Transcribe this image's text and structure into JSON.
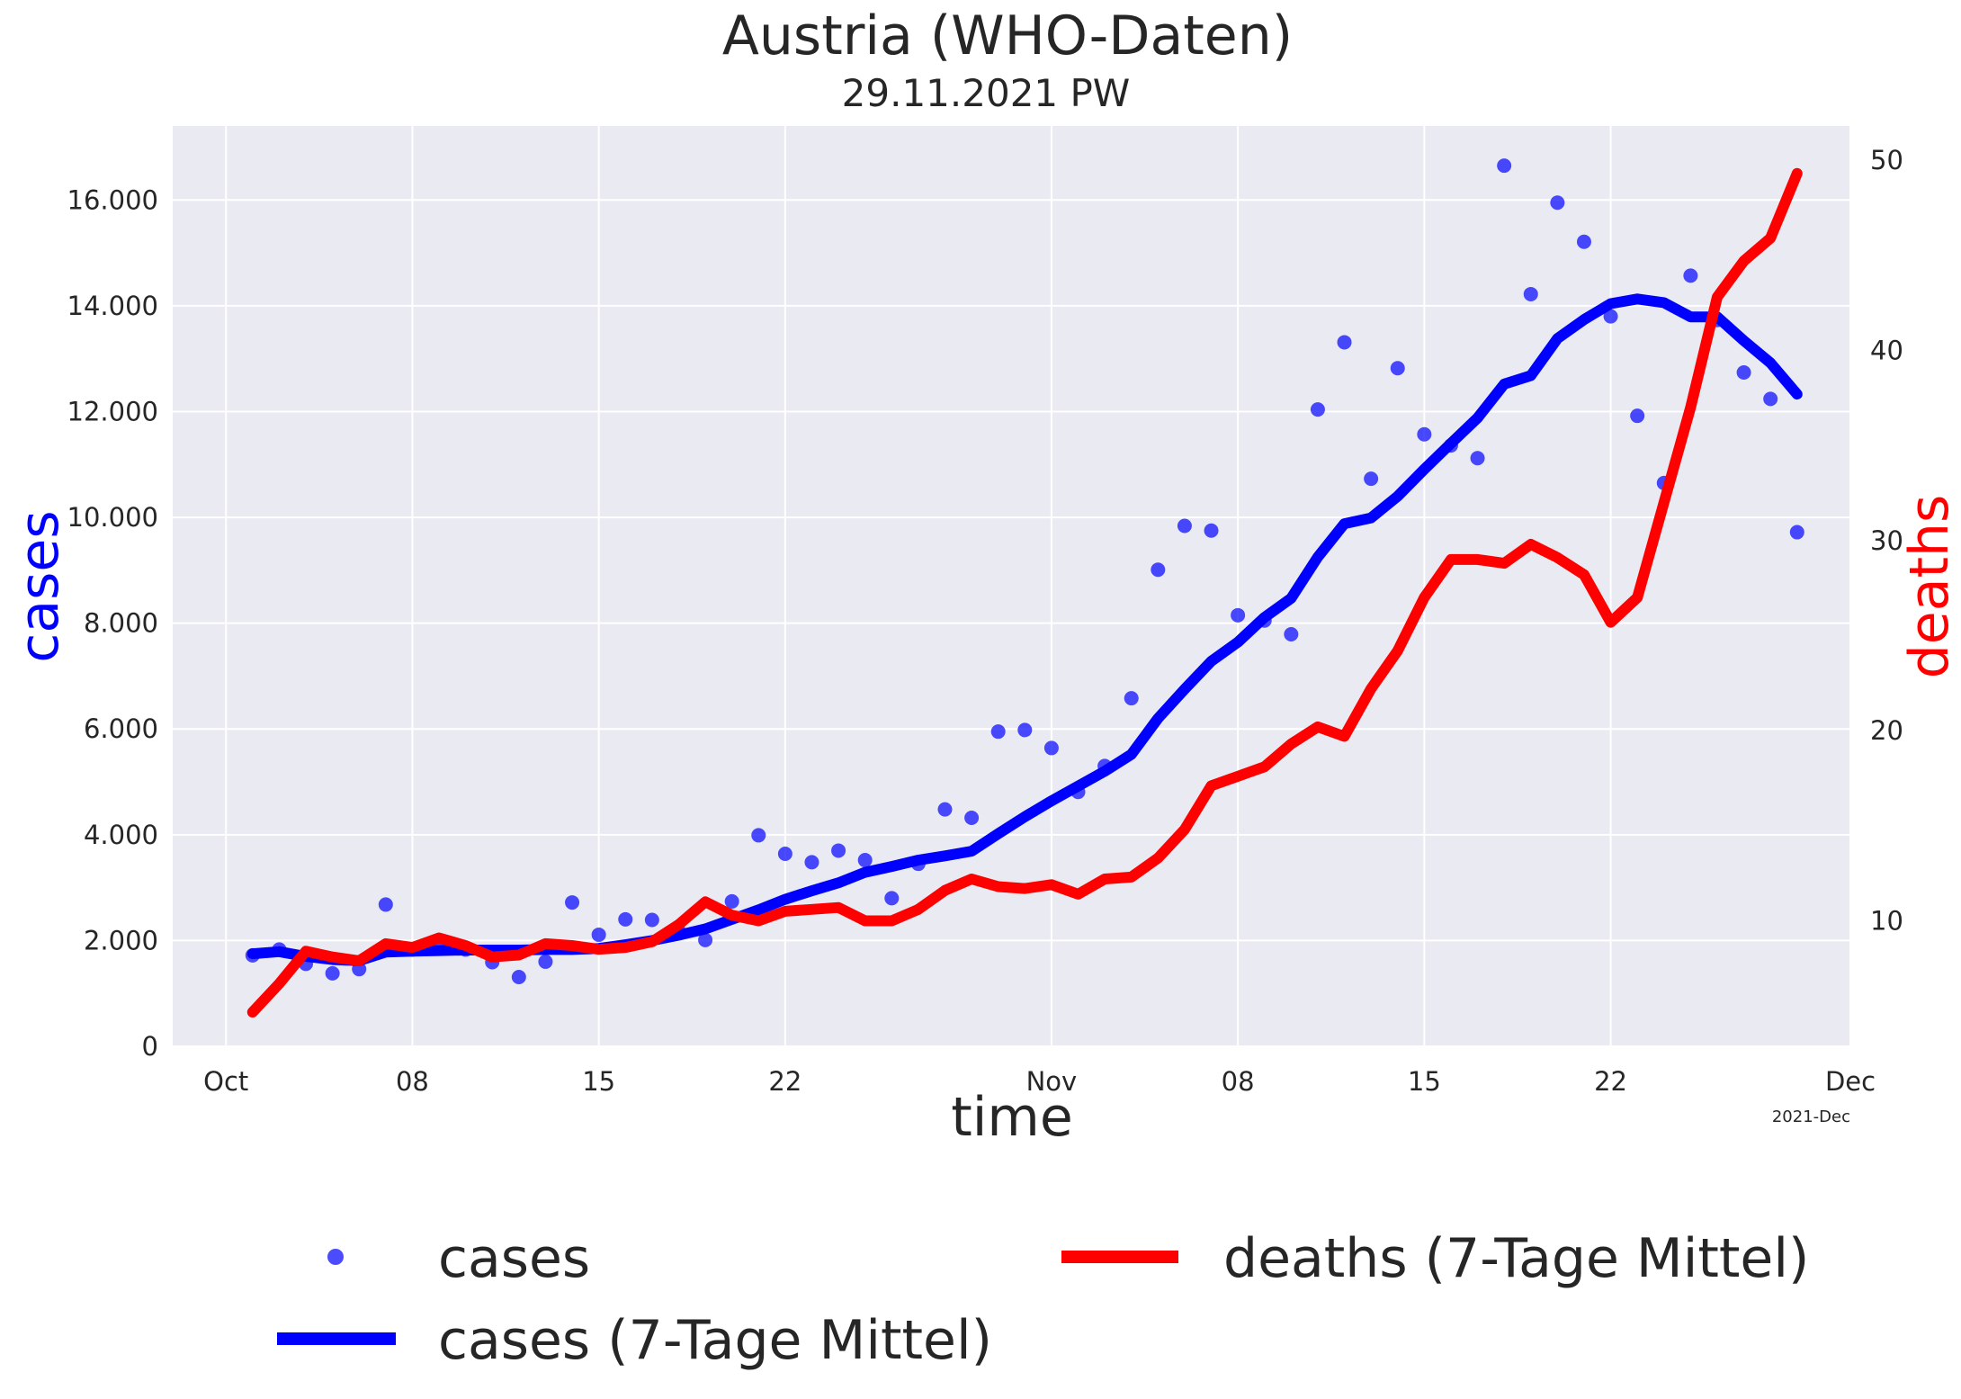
{
  "chart_data": {
    "type": "line",
    "title": "Austria  (WHO-Daten)",
    "subtitle": "29.11.2021 PW",
    "xlabel": "time",
    "ylabel_left": "cases",
    "ylabel_right": "deaths",
    "x_range": [
      "2021-09-29",
      "2021-12-01"
    ],
    "ylim_left": [
      0,
      17400
    ],
    "ylim_right": [
      3.4,
      51.8
    ],
    "grid": true,
    "legend_position": "bottom",
    "x_ticks": [
      {
        "date": "2021-10-01",
        "label": "Oct"
      },
      {
        "date": "2021-10-08",
        "label": "08"
      },
      {
        "date": "2021-10-15",
        "label": "15"
      },
      {
        "date": "2021-10-22",
        "label": "22"
      },
      {
        "date": "2021-11-01",
        "label": "Nov"
      },
      {
        "date": "2021-11-08",
        "label": "08"
      },
      {
        "date": "2021-11-15",
        "label": "15"
      },
      {
        "date": "2021-11-22",
        "label": "22"
      },
      {
        "date": "2021-12-01",
        "label": "Dec"
      }
    ],
    "x_offset_label": "2021-Dec",
    "y_left_ticks": [
      {
        "value": 0,
        "label": "0"
      },
      {
        "value": 2000,
        "label": "2.000"
      },
      {
        "value": 4000,
        "label": "4.000"
      },
      {
        "value": 6000,
        "label": "6.000"
      },
      {
        "value": 8000,
        "label": "8.000"
      },
      {
        "value": 10000,
        "label": "10.000"
      },
      {
        "value": 12000,
        "label": "12.000"
      },
      {
        "value": 14000,
        "label": "14.000"
      },
      {
        "value": 16000,
        "label": "16.000"
      }
    ],
    "y_right_ticks": [
      {
        "value": 10,
        "label": "10"
      },
      {
        "value": 20,
        "label": "20"
      },
      {
        "value": 30,
        "label": "30"
      },
      {
        "value": 40,
        "label": "40"
      },
      {
        "value": 50,
        "label": "50"
      }
    ],
    "dates": [
      "2021-10-02",
      "2021-10-03",
      "2021-10-04",
      "2021-10-05",
      "2021-10-06",
      "2021-10-07",
      "2021-10-08",
      "2021-10-09",
      "2021-10-10",
      "2021-10-11",
      "2021-10-12",
      "2021-10-13",
      "2021-10-14",
      "2021-10-15",
      "2021-10-16",
      "2021-10-17",
      "2021-10-18",
      "2021-10-19",
      "2021-10-20",
      "2021-10-21",
      "2021-10-22",
      "2021-10-23",
      "2021-10-24",
      "2021-10-25",
      "2021-10-26",
      "2021-10-27",
      "2021-10-28",
      "2021-10-29",
      "2021-10-30",
      "2021-10-31",
      "2021-11-01",
      "2021-11-02",
      "2021-11-03",
      "2021-11-04",
      "2021-11-05",
      "2021-11-06",
      "2021-11-07",
      "2021-11-08",
      "2021-11-09",
      "2021-11-10",
      "2021-11-11",
      "2021-11-12",
      "2021-11-13",
      "2021-11-14",
      "2021-11-15",
      "2021-11-16",
      "2021-11-17",
      "2021-11-18",
      "2021-11-19",
      "2021-11-20",
      "2021-11-21",
      "2021-11-22",
      "2021-11-23",
      "2021-11-24",
      "2021-11-25",
      "2021-11-26",
      "2021-11-27",
      "2021-11-28",
      "2021-11-29"
    ],
    "series": [
      {
        "name": "cases",
        "style": "scatter",
        "axis": "left",
        "color": "#0000ff",
        "values": [
          1720,
          1830,
          1560,
          1380,
          1460,
          2680,
          1830,
          1850,
          1830,
          1590,
          1310,
          1600,
          2720,
          2110,
          2400,
          2390,
          2180,
          2010,
          2740,
          3990,
          3640,
          3480,
          3700,
          3520,
          2800,
          3450,
          4480,
          4320,
          5950,
          5980,
          5640,
          4810,
          5300,
          6580,
          9010,
          9840,
          9750,
          8150,
          8050,
          7790,
          12040,
          13310,
          10730,
          12820,
          11570,
          11360,
          11120,
          16650,
          14220,
          15950,
          15210,
          13800,
          11920,
          10650,
          14570,
          13730,
          12740,
          12240,
          9720
        ]
      },
      {
        "name": "cases (7-Tage Mittel)",
        "style": "line",
        "axis": "left",
        "color": "#0000ff",
        "values": [
          1750,
          1790,
          1700,
          1640,
          1620,
          1780,
          1800,
          1810,
          1820,
          1820,
          1820,
          1830,
          1830,
          1850,
          1920,
          2000,
          2100,
          2220,
          2400,
          2580,
          2780,
          2940,
          3090,
          3290,
          3400,
          3520,
          3600,
          3690,
          4020,
          4340,
          4640,
          4920,
          5200,
          5520,
          6200,
          6750,
          7280,
          7640,
          8110,
          8470,
          9250,
          9880,
          9990,
          10400,
          10910,
          11400,
          11880,
          12520,
          12680,
          13380,
          13740,
          14040,
          14130,
          14060,
          13790,
          13790,
          13340,
          12920,
          12330
        ]
      },
      {
        "name": "deaths (7-Tage Mittel)",
        "style": "line",
        "axis": "right",
        "color": "#ff0000",
        "values": [
          5.2,
          6.7,
          8.4,
          8.1,
          7.9,
          8.8,
          8.6,
          9.1,
          8.7,
          8.1,
          8.2,
          8.8,
          8.7,
          8.5,
          8.6,
          8.9,
          9.8,
          11.0,
          10.3,
          10.0,
          10.5,
          10.6,
          10.7,
          10.0,
          10.0,
          10.6,
          11.6,
          12.2,
          11.8,
          11.7,
          11.9,
          11.4,
          12.2,
          12.3,
          13.3,
          14.8,
          17.1,
          17.6,
          18.1,
          19.3,
          20.2,
          19.7,
          22.2,
          24.2,
          27.0,
          29.0,
          29.0,
          28.8,
          29.8,
          29.1,
          28.2,
          25.7,
          27.0,
          32.0,
          37.0,
          42.8,
          44.7,
          45.9,
          49.3
        ]
      }
    ],
    "legend": [
      "cases",
      "cases (7-Tage Mittel)",
      "deaths (7-Tage Mittel)"
    ]
  }
}
